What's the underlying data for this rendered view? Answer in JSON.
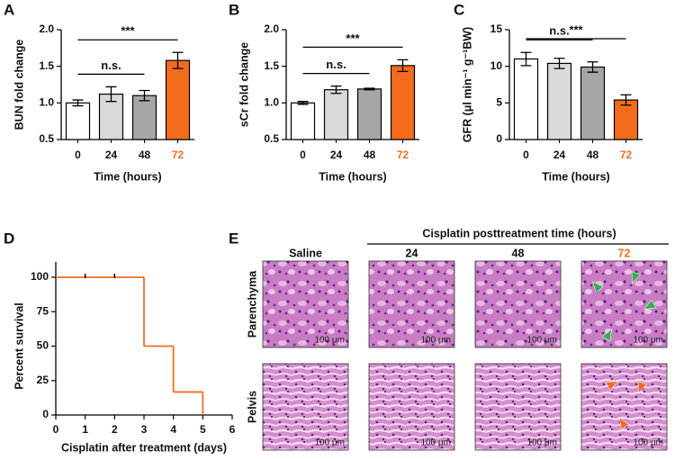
{
  "panel_labels": [
    "A",
    "B",
    "C",
    "D",
    "E"
  ],
  "chart_data": [
    {
      "type": "bar",
      "ylabel": "BUN fold change",
      "xlabel": "Time (hours)",
      "categories": [
        "0",
        "24",
        "48",
        "72"
      ],
      "values": [
        1.0,
        1.12,
        1.1,
        1.58
      ],
      "errors": [
        0.04,
        0.1,
        0.07,
        0.11
      ],
      "colors": [
        "#ffffff",
        "#d9d9d9",
        "#a6a6a6",
        "#f26c1c"
      ],
      "ylim": [
        0.5,
        2.0
      ],
      "yticks": [
        0.5,
        {
          "value": 1.0,
          "label": "1.0"
        },
        1.5,
        {
          "value": 2.0,
          "label": "2.0"
        }
      ],
      "annotations": [
        {
          "text": "n.s.",
          "span": [
            "0",
            "48"
          ]
        },
        {
          "text": "***",
          "span": [
            "0",
            "72"
          ]
        }
      ]
    },
    {
      "type": "bar",
      "ylabel": "sCr fold change",
      "xlabel": "Time (hours)",
      "categories": [
        "0",
        "24",
        "48",
        "72"
      ],
      "values": [
        1.0,
        1.18,
        1.19,
        1.51
      ],
      "errors": [
        0.02,
        0.05,
        0.01,
        0.08
      ],
      "colors": [
        "#ffffff",
        "#d9d9d9",
        "#a6a6a6",
        "#f26c1c"
      ],
      "ylim": [
        0.5,
        2.0
      ],
      "yticks": [
        0.5,
        {
          "value": 1.0,
          "label": "1.0"
        },
        1.5,
        {
          "value": 2.0,
          "label": "2.0"
        }
      ],
      "annotations": [
        {
          "text": "n.s.",
          "span": [
            "0",
            "48"
          ]
        },
        {
          "text": "***",
          "span": [
            "0",
            "72"
          ]
        }
      ]
    },
    {
      "type": "bar",
      "ylabel": "GFR (μl min⁻¹ g⁻¹BW)",
      "xlabel": "Time (hours)",
      "categories": [
        "0",
        "24",
        "48",
        "72"
      ],
      "values": [
        11.0,
        10.4,
        9.9,
        5.4
      ],
      "errors": [
        0.9,
        0.7,
        0.7,
        0.7
      ],
      "colors": [
        "#ffffff",
        "#d9d9d9",
        "#a6a6a6",
        "#f26c1c"
      ],
      "ylim": [
        0,
        15
      ],
      "yticks": [
        0,
        5,
        10,
        15
      ],
      "annotations": [
        {
          "text": "n.s.",
          "span": [
            "0",
            "48"
          ]
        },
        {
          "text": "***",
          "span": [
            "0",
            "72"
          ]
        }
      ]
    },
    {
      "type": "step",
      "ylabel": "Percent survival",
      "xlabel": "Cisplatin after treatment (days)",
      "x": [
        0,
        3,
        4,
        5
      ],
      "values": [
        100,
        50,
        16.7,
        0
      ],
      "color": "#f26c1c",
      "censored_x": [
        1,
        2
      ],
      "censored_values": [
        100,
        100
      ],
      "xlim": [
        0,
        6
      ],
      "xticks": [
        0,
        1,
        2,
        3,
        4,
        5,
        6
      ],
      "ylim": [
        0,
        100
      ],
      "yticks": [
        0,
        25,
        50,
        75,
        100
      ]
    }
  ],
  "histology": {
    "super_header": "Cisplatin posttreatment time (hours)",
    "columns": [
      "Saline",
      "24",
      "48",
      "72"
    ],
    "rows": [
      "Parenchyma",
      "Pelvis"
    ],
    "scale_bar": "100 μm"
  }
}
